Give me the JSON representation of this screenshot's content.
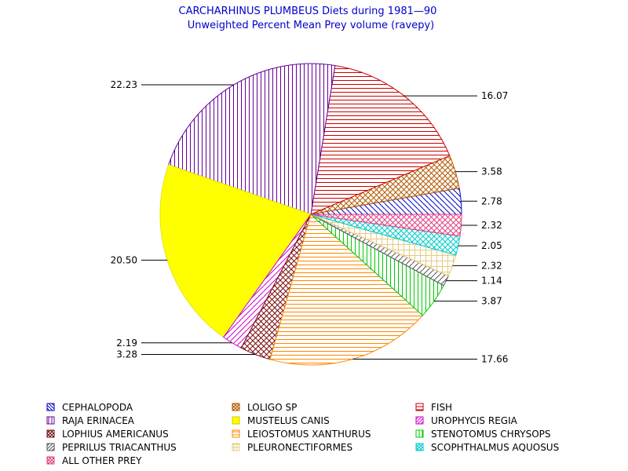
{
  "chart_data": {
    "type": "pie",
    "title": "CARCHARHINUS PLUMBEUS Diets during 1981—90",
    "subtitle": "Unweighted Percent Mean Prey volume (ravepy)",
    "slices": [
      {
        "name": "CEPHALOPODA",
        "value": 2.78,
        "label": "2.78",
        "color": "#0000cc",
        "pattern": "diag-down"
      },
      {
        "name": "LOLIGO SP",
        "value": 3.58,
        "label": "3.58",
        "color": "#b35a00",
        "pattern": "crosshatch"
      },
      {
        "name": "FISH",
        "value": 16.07,
        "label": "16.07",
        "color": "#cc0000",
        "pattern": "horizontal"
      },
      {
        "name": "RAJA ERINACEA",
        "value": 22.23,
        "label": "22.23",
        "color": "#660099",
        "pattern": "vertical"
      },
      {
        "name": "MUSTELUS CANIS",
        "value": 20.5,
        "label": "20.50",
        "color": "#ffff00",
        "pattern": "solid"
      },
      {
        "name": "UROPHYCIS REGIA",
        "value": 2.19,
        "label": "2.19",
        "color": "#cc00cc",
        "pattern": "diag-up"
      },
      {
        "name": "LOPHIUS AMERICANUS",
        "value": 3.28,
        "label": "3.28",
        "color": "#7a1010",
        "pattern": "crosshatch"
      },
      {
        "name": "LEIOSTOMUS XANTHURUS",
        "value": 17.66,
        "label": "17.66",
        "color": "#ff8800",
        "pattern": "horizontal"
      },
      {
        "name": "STENOTOMUS CHRYSOPS",
        "value": 3.87,
        "label": "3.87",
        "color": "#00cc00",
        "pattern": "vertical"
      },
      {
        "name": "PEPRILUS TRIACANTHUS",
        "value": 1.14,
        "label": "1.14",
        "color": "#555555",
        "pattern": "diag-up"
      },
      {
        "name": "PLEURONECTIFORMES",
        "value": 2.32,
        "label": "2.32",
        "color": "#e6cc80",
        "pattern": "grid"
      },
      {
        "name": "SCOPHTHALMUS AQUOSUS",
        "value": 2.05,
        "label": "2.05",
        "color": "#00cccc",
        "pattern": "crosshatch"
      },
      {
        "name": "ALL OTHER PREY",
        "value": 2.32,
        "label": "2.32",
        "color": "#e04080",
        "pattern": "crosshatch"
      }
    ],
    "legend_placement": "bottom",
    "legend_order": [
      "CEPHALOPODA",
      "LOLIGO SP",
      "FISH",
      "RAJA ERINACEA",
      "MUSTELUS CANIS",
      "UROPHYCIS REGIA",
      "LOPHIUS AMERICANUS",
      "LEIOSTOMUS XANTHURUS",
      "STENOTOMUS CHRYSOPS",
      "PEPRILUS TRIACANTHUS",
      "PLEURONECTIFORMES",
      "SCOPHTHALMUS AQUOSUS",
      "ALL OTHER PREY"
    ]
  }
}
